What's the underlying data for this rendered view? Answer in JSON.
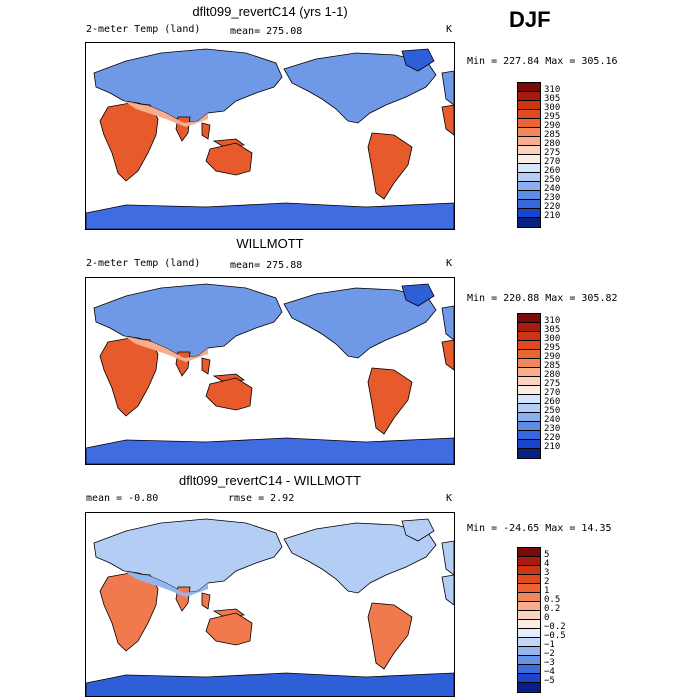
{
  "season": "DJF",
  "panels": [
    {
      "title": "dflt099_revertC14 (yrs 1-1)",
      "variable": "2-meter Temp (land)",
      "stat1": "mean= 275.08",
      "units": "K",
      "minmax": "Min = 227.84 Max = 305.16",
      "kind": "abs",
      "legend_labels": [
        "310",
        "305",
        "300",
        "295",
        "290",
        "285",
        "280",
        "275",
        "270",
        "260",
        "250",
        "240",
        "230",
        "220",
        "210"
      ]
    },
    {
      "title": "WILLMOTT",
      "variable": "2-meter Temp (land)",
      "stat1": "mean= 275.88",
      "units": "K",
      "minmax": "Min = 220.88 Max = 305.82",
      "kind": "abs",
      "legend_labels": [
        "310",
        "305",
        "300",
        "295",
        "290",
        "285",
        "280",
        "275",
        "270",
        "260",
        "250",
        "240",
        "230",
        "220",
        "210"
      ]
    },
    {
      "title": "dflt099_revertC14 - WILLMOTT",
      "stat1": "mean =   -0.80",
      "stat2": "rmse =    2.92",
      "units": "K",
      "minmax": "Min = -24.65 Max =  14.35",
      "kind": "diff",
      "legend_labels": [
        "5",
        "4",
        "3",
        "2",
        "1",
        "0.5",
        "0.2",
        "0",
        "−0.2",
        "−0.5",
        "−1",
        "−2",
        "−3",
        "−4",
        "−5"
      ]
    }
  ],
  "colors": {
    "abs_scale": [
      "#7a0a0a",
      "#a8190f",
      "#cc3412",
      "#e04a20",
      "#eb6533",
      "#f3875c",
      "#f9ad8c",
      "#fcd3bf",
      "#fdece3",
      "#d6e6fa",
      "#b3cdf5",
      "#8bb0ee",
      "#5e8be4",
      "#3768dc",
      "#1845cc",
      "#08207f"
    ],
    "diff_scale": [
      "#7a0a0a",
      "#a8190f",
      "#cc3412",
      "#e04a20",
      "#eb6533",
      "#f3875c",
      "#f9ad8c",
      "#fcd3bf",
      "#fdece3",
      "#e3edfb",
      "#c2d6f7",
      "#94b6ef",
      "#6892e6",
      "#3d6cdc",
      "#1b46cc",
      "#081e88"
    ],
    "land_warm": "#e65a2c",
    "land_cool": "#6f98e6",
    "land_cold": "#2f5fd6",
    "antarctica": "#3f6ce0",
    "coast": "#000000"
  }
}
